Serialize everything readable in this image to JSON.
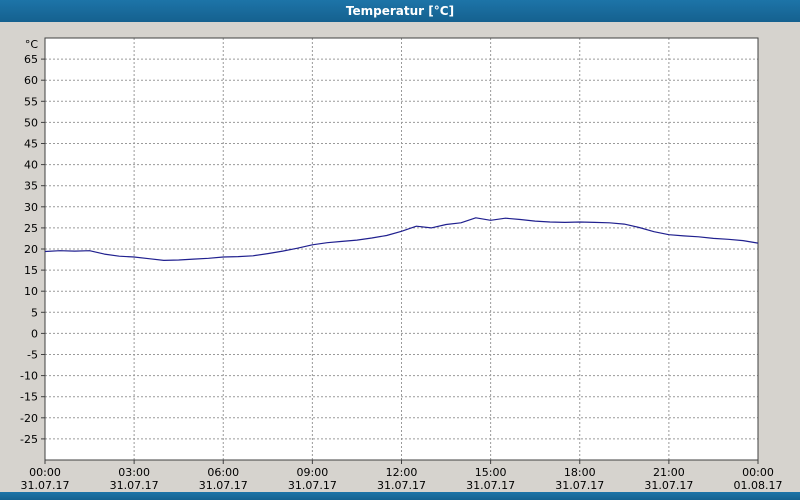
{
  "window": {
    "title": "Temperatur [°C]",
    "titlebar_color": "#17689b",
    "background_color": "#d6d3ce"
  },
  "chart_data": {
    "type": "line",
    "title": "Temperatur [°C]",
    "unit_label": "°C",
    "line_color": "#20208f",
    "plot_background": "#ffffff",
    "grid": true,
    "grid_color": "#9a9a9a",
    "axis_color": "#404040",
    "label_color": "#000000",
    "xlim": [
      0,
      24
    ],
    "ylim": [
      -30,
      70
    ],
    "yticks": [
      65,
      60,
      55,
      50,
      45,
      40,
      35,
      30,
      25,
      20,
      15,
      10,
      5,
      0,
      -5,
      -10,
      -15,
      -20,
      -25
    ],
    "xticks": [
      {
        "hour": 0,
        "time": "00:00",
        "date": "31.07.17"
      },
      {
        "hour": 3,
        "time": "03:00",
        "date": "31.07.17"
      },
      {
        "hour": 6,
        "time": "06:00",
        "date": "31.07.17"
      },
      {
        "hour": 9,
        "time": "09:00",
        "date": "31.07.17"
      },
      {
        "hour": 12,
        "time": "12:00",
        "date": "31.07.17"
      },
      {
        "hour": 15,
        "time": "15:00",
        "date": "31.07.17"
      },
      {
        "hour": 18,
        "time": "18:00",
        "date": "31.07.17"
      },
      {
        "hour": 21,
        "time": "21:00",
        "date": "31.07.17"
      },
      {
        "hour": 24,
        "time": "00:00",
        "date": "01.08.17"
      }
    ],
    "series": [
      {
        "name": "Temperatur",
        "x": [
          0,
          0.5,
          1,
          1.5,
          2,
          2.5,
          3,
          3.5,
          4,
          4.5,
          5,
          5.5,
          6,
          6.5,
          7,
          7.5,
          8,
          8.5,
          9,
          9.5,
          10,
          10.5,
          11,
          11.5,
          12,
          12.5,
          13,
          13.5,
          14,
          14.5,
          15,
          15.5,
          16,
          16.5,
          17,
          17.5,
          18,
          18.5,
          19,
          19.5,
          20,
          20.5,
          21,
          21.5,
          22,
          22.5,
          23,
          23.5,
          24
        ],
        "values": [
          19.4,
          19.6,
          19.5,
          19.6,
          18.8,
          18.3,
          18.1,
          17.7,
          17.3,
          17.4,
          17.6,
          17.8,
          18.1,
          18.2,
          18.4,
          18.9,
          19.5,
          20.2,
          21.0,
          21.5,
          21.8,
          22.1,
          22.6,
          23.2,
          24.2,
          25.4,
          25.0,
          25.8,
          26.2,
          27.4,
          26.8,
          27.3,
          27.0,
          26.6,
          26.4,
          26.3,
          26.4,
          26.3,
          26.2,
          25.9,
          25.1,
          24.1,
          23.4,
          23.1,
          22.9,
          22.5,
          22.3,
          22.0,
          21.4
        ]
      }
    ]
  }
}
